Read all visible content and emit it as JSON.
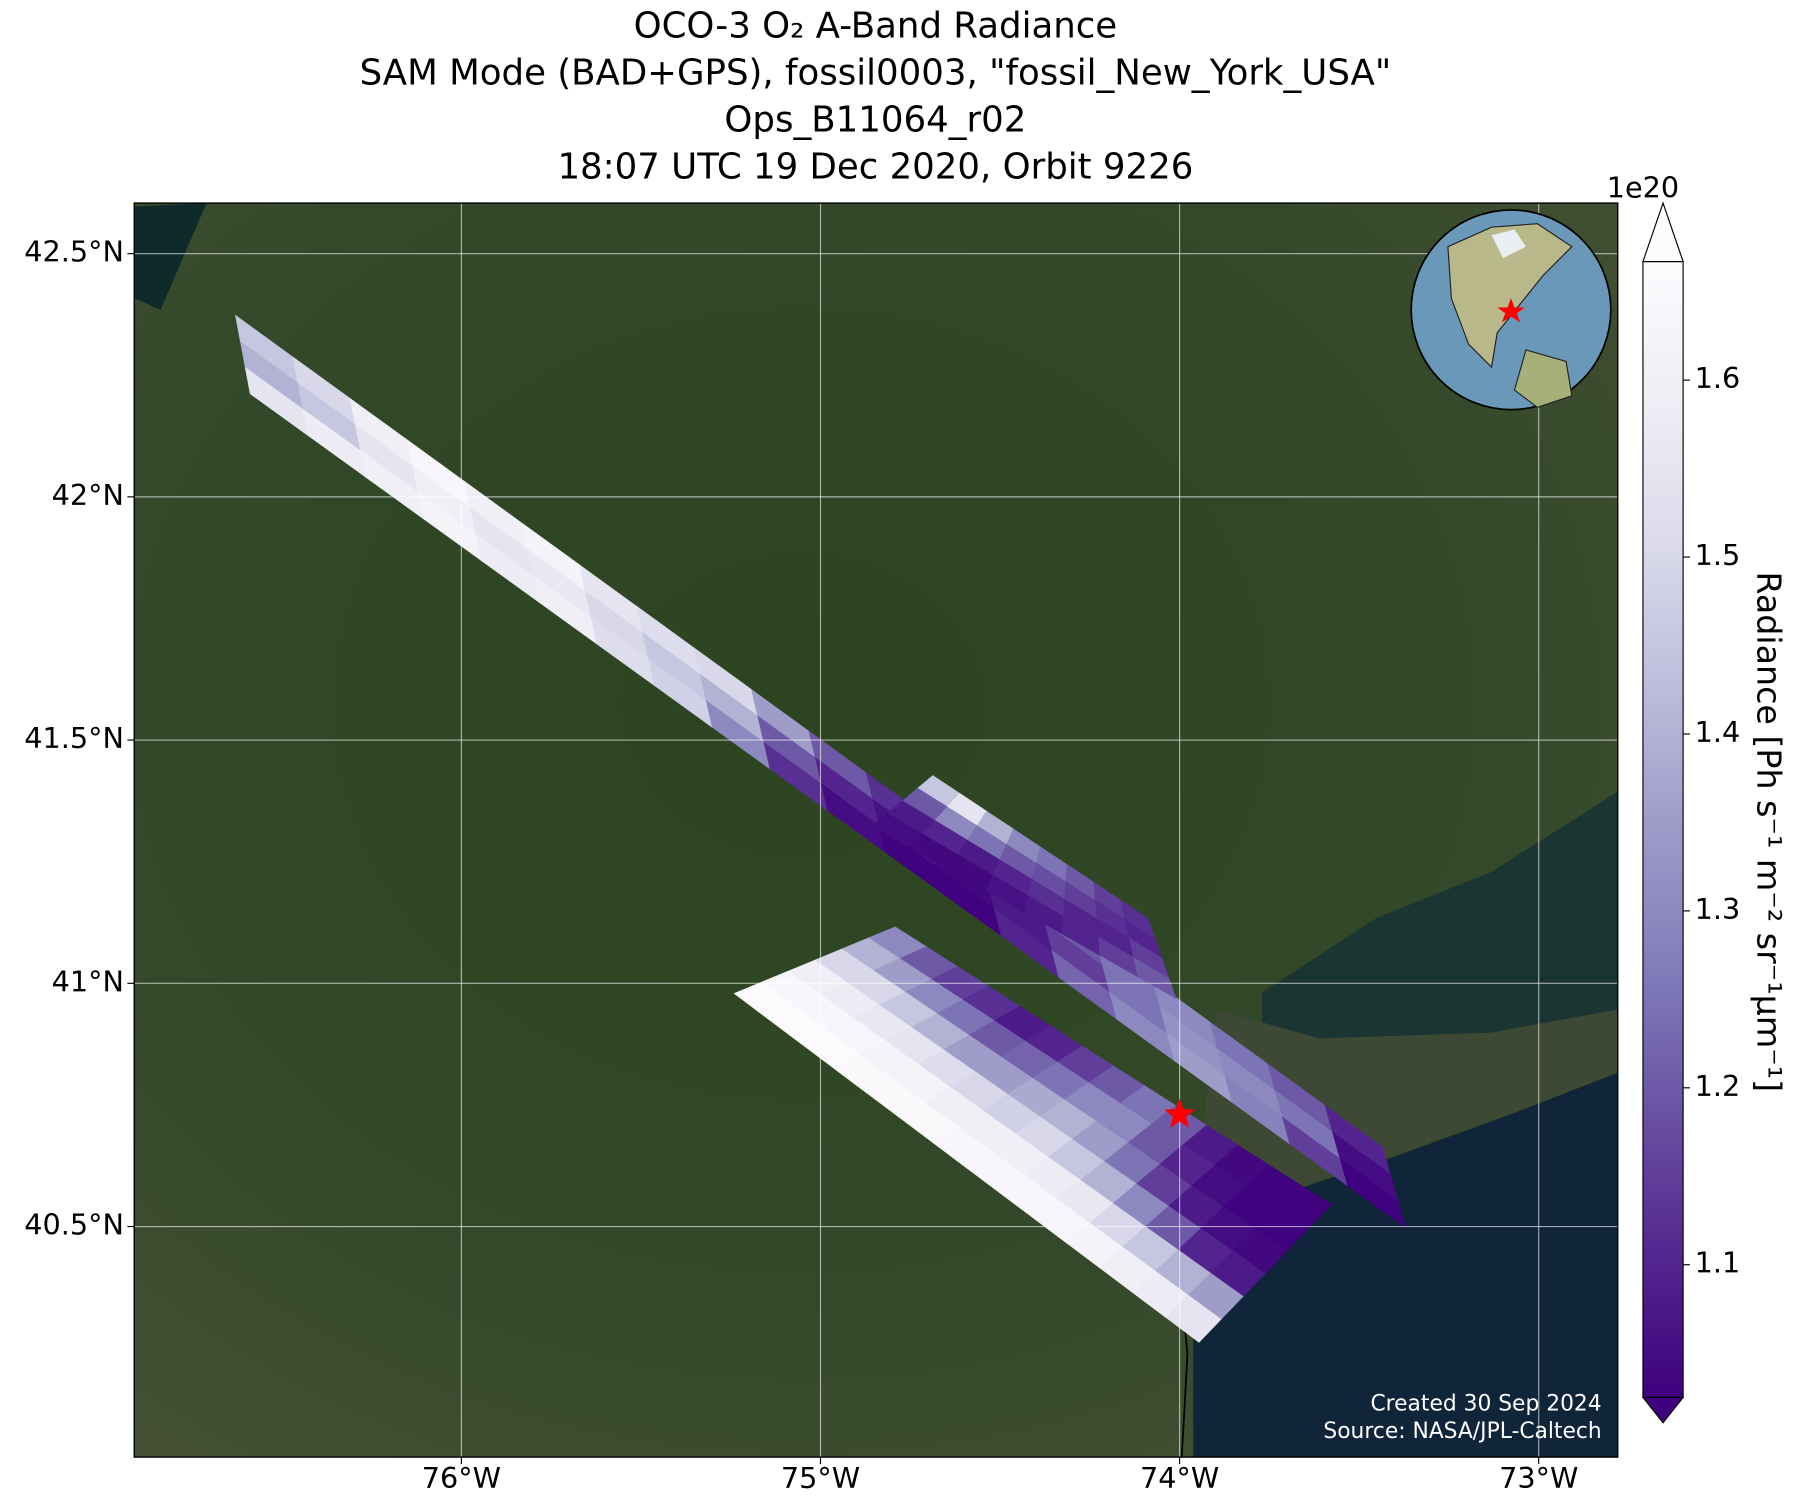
{
  "chart_data": {
    "type": "swath_map",
    "title": [
      "OCO-3 O₂ A-Band Radiance",
      "SAM Mode (BAD+GPS), fossil0003, \"fossil_New_York_USA\"",
      "Ops_B11064_r02",
      "18:07 UTC 19 Dec 2020, Orbit 9226"
    ],
    "xlim": [
      -76.911,
      -72.78
    ],
    "ylim": [
      40.026,
      42.604
    ],
    "xticks": [
      {
        "value": -76,
        "label": "76°W"
      },
      {
        "value": -75,
        "label": "75°W"
      },
      {
        "value": -74,
        "label": "74°W"
      },
      {
        "value": -73,
        "label": "73°W"
      }
    ],
    "yticks": [
      {
        "value": 40.5,
        "label": "40.5°N"
      },
      {
        "value": 41,
        "label": "41°N"
      },
      {
        "value": 41.5,
        "label": "41.5°N"
      },
      {
        "value": 42,
        "label": "42°N"
      },
      {
        "value": 42.5,
        "label": "42.5°N"
      }
    ],
    "grid": true,
    "colorbar": {
      "label": "Radiance [Ph s⁻¹ m⁻² sr⁻¹μm⁻¹]",
      "offset_label": "1e20",
      "clim": [
        1.025,
        1.667
      ],
      "ticks": [
        1.1,
        1.2,
        1.3,
        1.4,
        1.5,
        1.6
      ],
      "extend": "both",
      "colormap": [
        "#3f007d",
        "#54278f",
        "#6a51a3",
        "#807dba",
        "#9e9ac8",
        "#bcbddc",
        "#dadaeb",
        "#efedf5",
        "#fcfbfd"
      ]
    },
    "swaths": [
      {
        "lon": [
          -76.629,
          -73.435,
          -73.371,
          -76.588
        ],
        "lat": [
          42.373,
          40.663,
          40.498,
          42.212
        ],
        "values": [
          [
            1.45,
            1.4,
            1.55
          ],
          [
            1.5,
            1.45,
            1.58
          ],
          [
            1.6,
            1.55,
            1.6
          ],
          [
            1.64,
            1.6,
            1.62
          ],
          [
            1.6,
            1.55,
            1.58
          ],
          [
            1.62,
            1.56,
            1.6
          ],
          [
            1.55,
            1.5,
            1.52
          ],
          [
            1.52,
            1.45,
            1.48
          ],
          [
            1.5,
            1.4,
            1.3
          ],
          [
            1.35,
            1.2,
            1.12
          ],
          [
            1.2,
            1.1,
            1.05
          ],
          [
            1.12,
            1.06,
            1.03
          ],
          [
            1.1,
            1.04,
            1.03
          ],
          [
            1.15,
            1.08,
            1.1
          ],
          [
            1.2,
            1.15,
            1.22
          ],
          [
            1.25,
            1.25,
            1.3
          ],
          [
            1.3,
            1.32,
            1.35
          ],
          [
            1.25,
            1.3,
            1.28
          ],
          [
            1.2,
            1.25,
            1.15
          ],
          [
            1.1,
            1.05,
            1.03
          ]
        ]
      },
      {
        "lon": [
          -74.687,
          -74.089,
          -74.01,
          -74.856
        ],
        "lat": [
          41.427,
          41.134,
          40.969,
          41.323
        ],
        "values": [
          [
            1.45,
            1.2,
            1.08,
            1.05
          ],
          [
            1.55,
            1.3,
            1.1,
            1.04
          ],
          [
            1.4,
            1.25,
            1.08,
            1.04
          ],
          [
            1.3,
            1.2,
            1.1,
            1.06
          ],
          [
            1.25,
            1.18,
            1.12,
            1.08
          ],
          [
            1.2,
            1.15,
            1.1,
            1.1
          ],
          [
            1.15,
            1.12,
            1.1,
            1.15
          ],
          [
            1.12,
            1.1,
            1.15,
            1.2
          ]
        ]
      },
      {
        "lon": [
          -74.792,
          -73.578,
          -73.946,
          -75.24
        ],
        "lat": [
          41.116,
          40.545,
          40.262,
          40.979
        ],
        "values": [
          [
            1.3,
            1.4,
            1.5,
            1.6,
            1.64,
            1.66
          ],
          [
            1.2,
            1.35,
            1.5,
            1.58,
            1.64,
            1.66
          ],
          [
            1.15,
            1.3,
            1.45,
            1.56,
            1.63,
            1.66
          ],
          [
            1.12,
            1.25,
            1.4,
            1.55,
            1.62,
            1.65
          ],
          [
            1.08,
            1.2,
            1.35,
            1.52,
            1.62,
            1.65
          ],
          [
            1.1,
            1.22,
            1.35,
            1.5,
            1.6,
            1.65
          ],
          [
            1.15,
            1.25,
            1.38,
            1.48,
            1.6,
            1.64
          ],
          [
            1.2,
            1.3,
            1.4,
            1.5,
            1.6,
            1.64
          ],
          [
            1.25,
            1.3,
            1.35,
            1.45,
            1.58,
            1.64
          ],
          [
            1.2,
            1.2,
            1.25,
            1.4,
            1.56,
            1.63
          ],
          [
            1.08,
            1.1,
            1.15,
            1.3,
            1.5,
            1.62
          ],
          [
            1.04,
            1.05,
            1.08,
            1.2,
            1.45,
            1.6
          ],
          [
            1.03,
            1.03,
            1.05,
            1.1,
            1.4,
            1.58
          ],
          [
            1.03,
            1.03,
            1.04,
            1.08,
            1.35,
            1.55
          ]
        ]
      }
    ],
    "target": {
      "lon": -74.0,
      "lat": 40.73,
      "color": "#ff0000"
    },
    "footer": [
      "Created 30 Sep 2024",
      "Source: NASA/JPL-Caltech"
    ]
  }
}
